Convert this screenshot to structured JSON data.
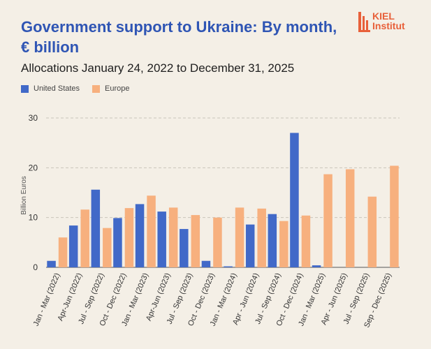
{
  "title": "Government support to Ukraine: By month, € billion",
  "subtitle": "Allocations January 24, 2022 to December 31, 2025",
  "logo": {
    "line1": "KIEL",
    "line2": "Institut"
  },
  "colors": {
    "us": "#4169c8",
    "europe": "#f7b07e",
    "grid": "#c9c4bb",
    "text": "#333333",
    "title": "#2f55b4",
    "logo": "#e8603a"
  },
  "chart_data": {
    "type": "bar",
    "title": "Government support to Ukraine: By month, € billion",
    "ylabel": "Billion Euros",
    "xlabel": "",
    "ylim": [
      0,
      30
    ],
    "yticks": [
      0,
      10,
      20,
      30
    ],
    "grid": true,
    "legend_position": "top-left",
    "categories": [
      "Jan - Mar (2022)",
      "Apr-Jun (2022)",
      "Jul - Sep (2022)",
      "Oct - Dec (2022)",
      "Jan - Mar (2023)",
      "Apr-Jun (2023)",
      "Jul - Sep (2023)",
      "Oct - Dec (2023)",
      "Jan - Mar (2024)",
      "Apr - Jun (2024)",
      "Jul - Sep (2024)",
      "Oct - Dec (2024)",
      "Jan - Mar (2025)",
      "Apr - Jun (2025)",
      "Jul - Sep (2025)",
      "Sep - Dec (2025)"
    ],
    "series": [
      {
        "name": "United States",
        "color": "#4169c8",
        "values": [
          1.3,
          8.4,
          15.6,
          9.9,
          12.7,
          11.2,
          7.7,
          1.3,
          0.2,
          8.6,
          10.7,
          27.0,
          0.4,
          0,
          0,
          0
        ]
      },
      {
        "name": "Europe",
        "color": "#f7b07e",
        "values": [
          6.0,
          11.6,
          7.9,
          11.9,
          14.4,
          12.0,
          10.5,
          10.0,
          12.0,
          11.8,
          9.3,
          10.4,
          18.7,
          19.7,
          14.2,
          20.4
        ]
      }
    ]
  }
}
